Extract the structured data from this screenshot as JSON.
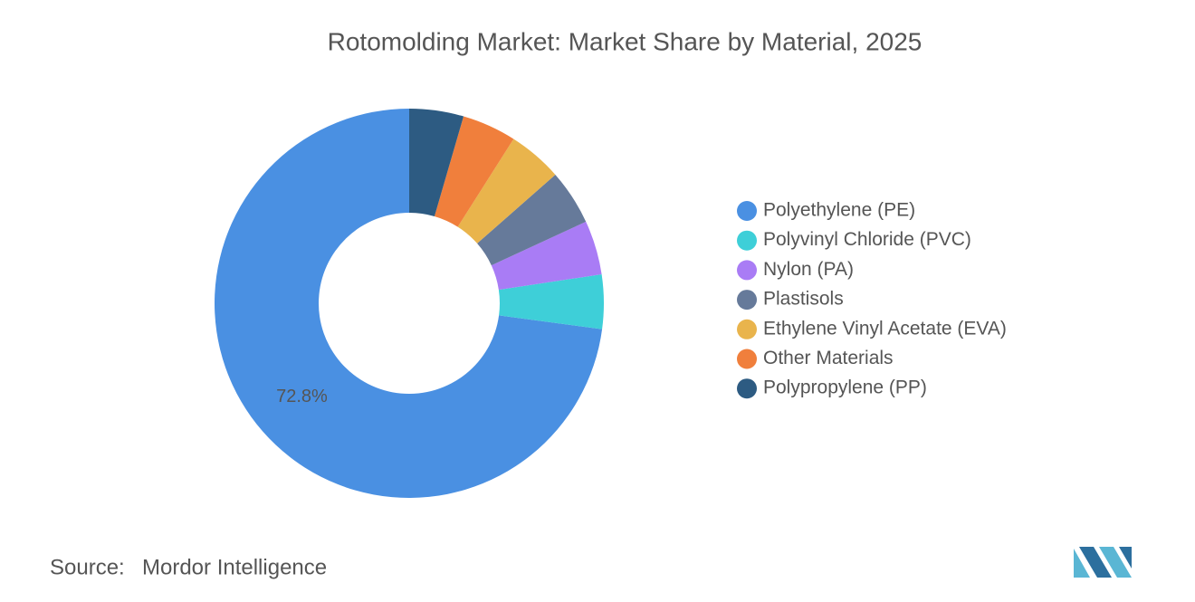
{
  "chart_data": {
    "type": "donut",
    "title": "Rotomolding Market: Market Share by Material, 2025",
    "categories": [
      "Polyethylene (PE)",
      "Polyvinyl Chloride (PVC)",
      "Nylon (PA)",
      "Plastisols",
      "Ethylene Vinyl Acetate (EVA)",
      "Other Materials",
      "Polypropylene (PP)"
    ],
    "values": [
      72.8,
      4.5,
      4.5,
      4.6,
      4.5,
      4.5,
      4.5
    ],
    "value_labels": [
      "72.8%",
      null,
      null,
      null,
      null,
      null,
      null
    ],
    "colors": [
      "#4a90e2",
      "#3ecfd8",
      "#a97cf5",
      "#667a9a",
      "#e9b44c",
      "#f07f3c",
      "#2d5b82"
    ],
    "legend": "right"
  },
  "source": {
    "label": "Source:",
    "name": "Mordor Intelligence"
  }
}
